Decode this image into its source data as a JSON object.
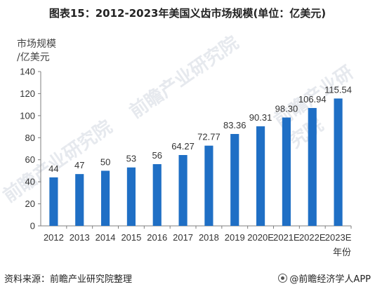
{
  "title": "图表15：2012-2023年美国义齿市场规模(单位：亿美元)",
  "source": "资料来源：前瞻产业研究院整理",
  "brand": "@前瞻经济学人APP",
  "watermark": "前瞻产业研究院",
  "colors": {
    "bar": "#1f6fc5",
    "axis": "#7f7f7f",
    "text": "#333333"
  },
  "chart_data": {
    "type": "bar",
    "ylabel_line1": "市场规模",
    "ylabel_line2": "/亿美元",
    "xlabel": "年份",
    "ylim": [
      0,
      140
    ],
    "yticks": [
      0,
      20,
      40,
      60,
      80,
      100,
      120,
      140
    ],
    "categories": [
      "2012",
      "2013",
      "2014",
      "2015",
      "2016",
      "2017",
      "2018",
      "2019",
      "2020E",
      "2021E",
      "2022E",
      "2023E"
    ],
    "values": [
      44,
      47,
      50,
      53,
      56,
      64.27,
      72.77,
      83.36,
      90.31,
      98.3,
      106.94,
      115.54
    ],
    "value_labels": [
      "44",
      "47",
      "50",
      "53",
      "56",
      "64.27",
      "72.77",
      "83.36",
      "90.31",
      "98.30",
      "106.94",
      "115.54"
    ]
  }
}
